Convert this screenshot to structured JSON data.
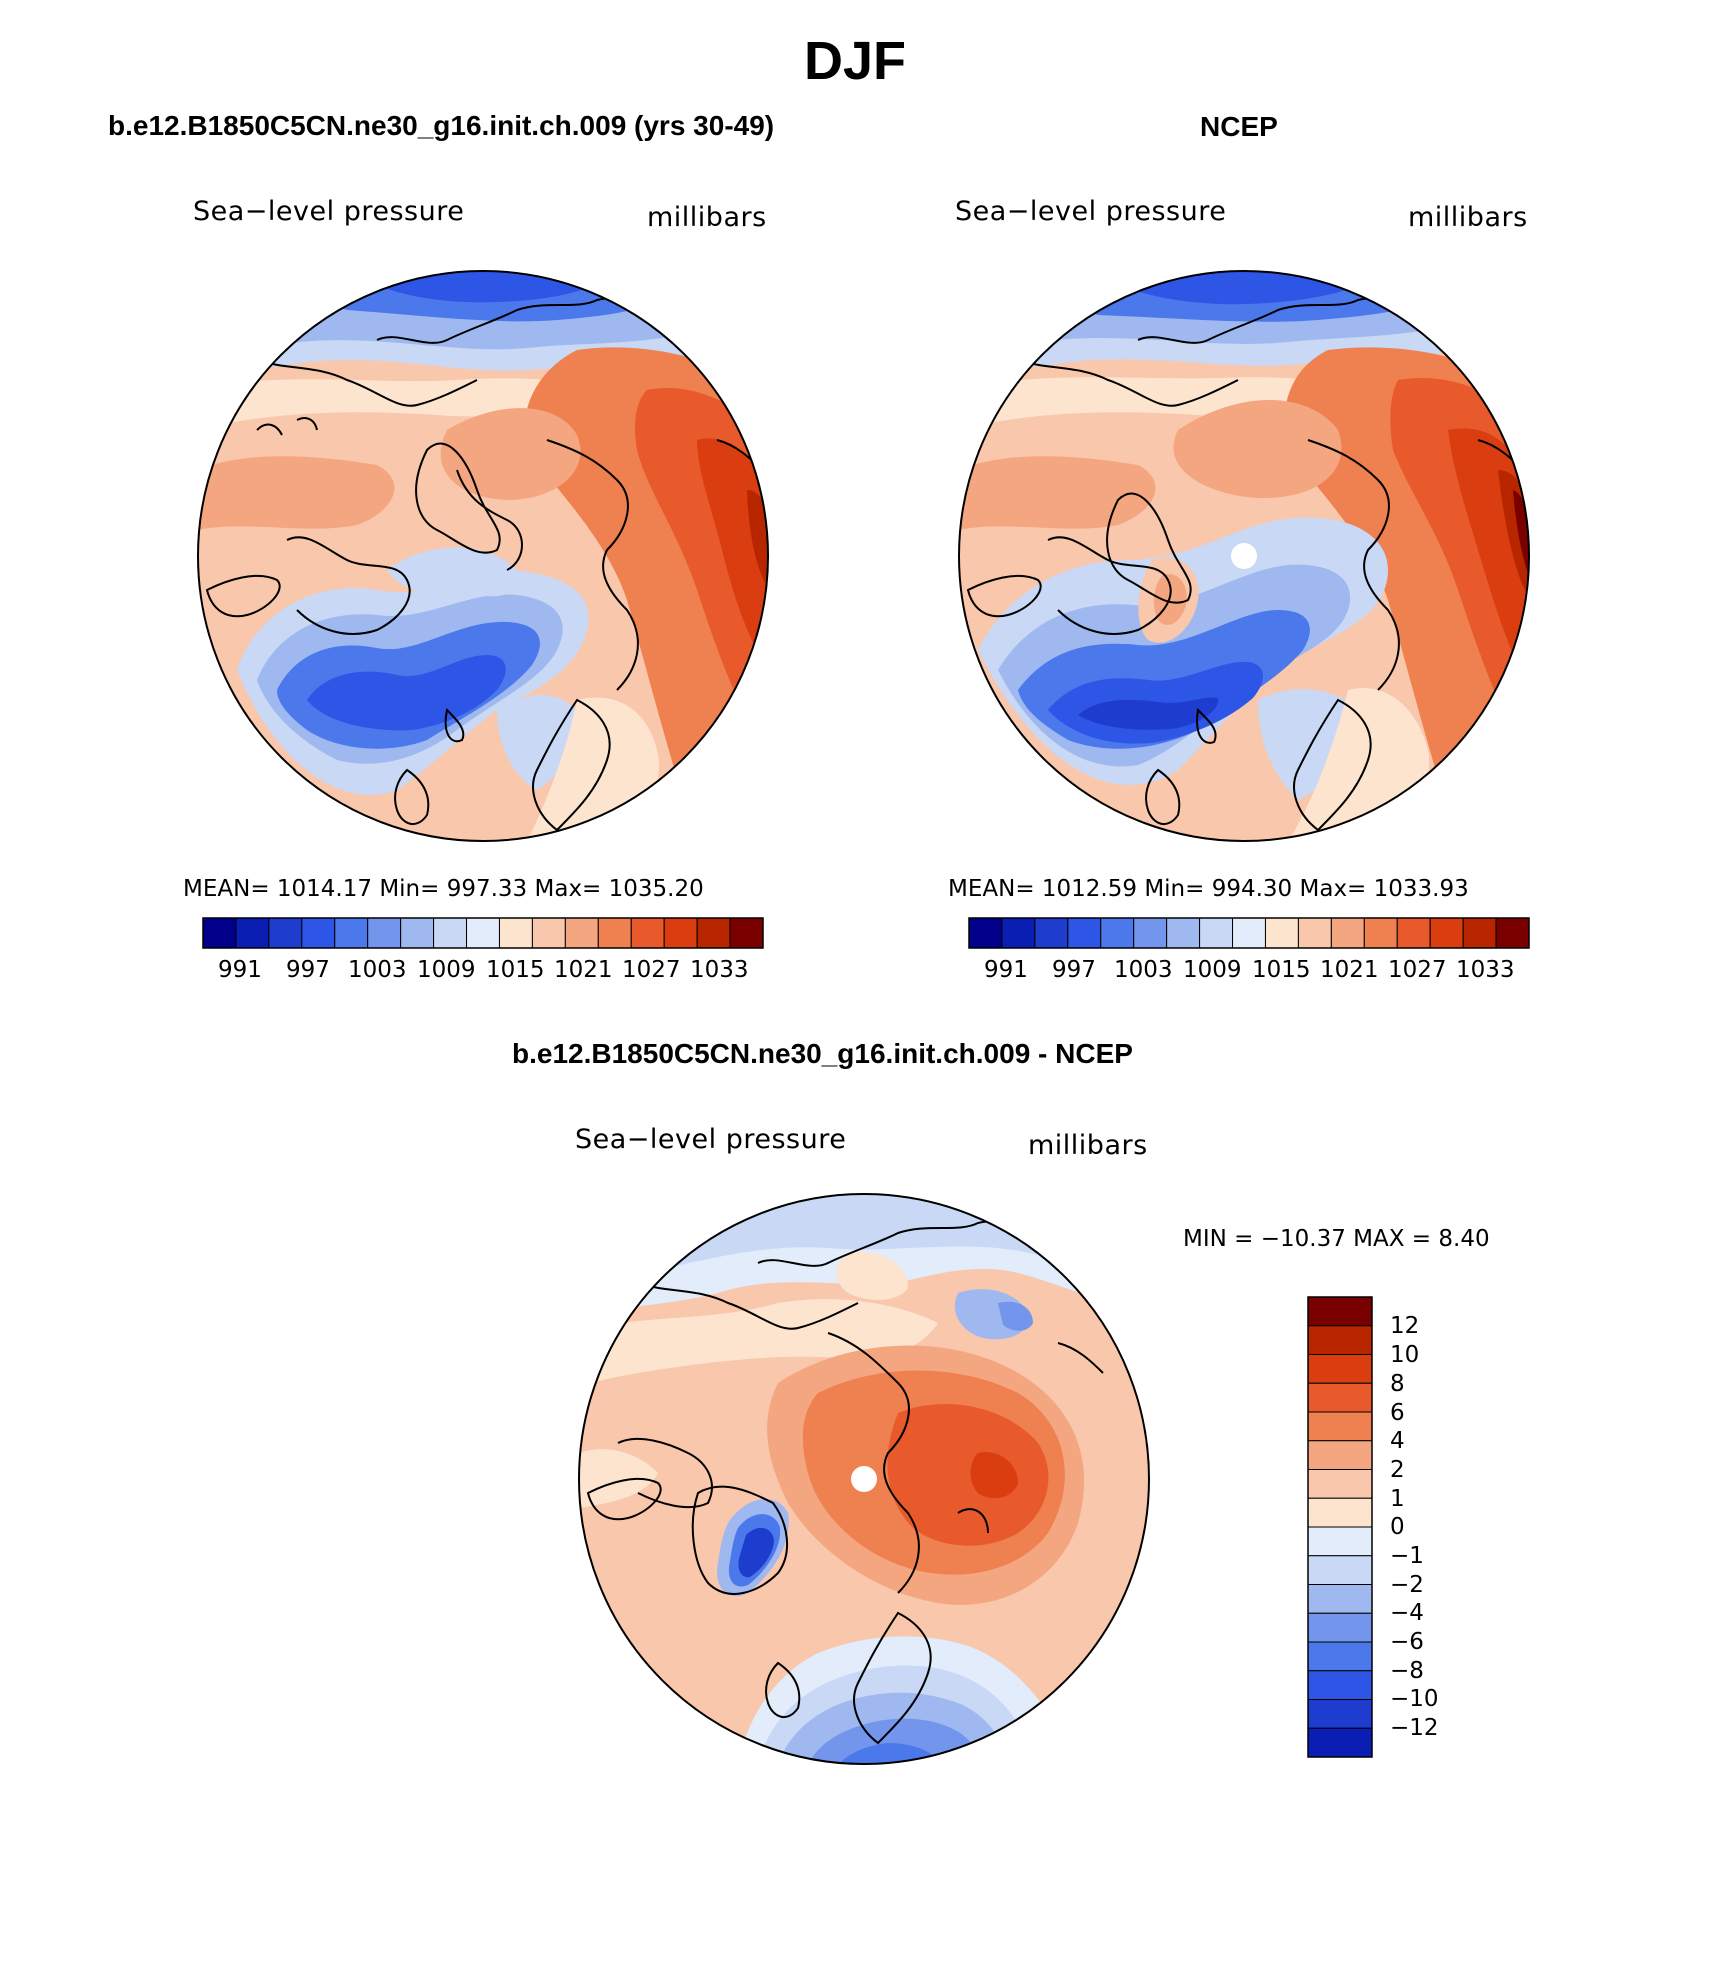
{
  "title": "DJF",
  "panels": [
    {
      "title": "b.e12.B1850C5CN.ne30_g16.init.ch.009 (yrs 30-49)",
      "left_label": "Sea−level pressure",
      "right_label": "millibars",
      "stats": "MEAN=  1014.17    Min=  997.33    Max=  1035.20",
      "colorbar_ticks": [
        "991",
        "997",
        "1003",
        "1009",
        "1015",
        "1021",
        "1027",
        "1033"
      ]
    },
    {
      "title": "NCEP",
      "left_label": "Sea−level pressure",
      "right_label": "millibars",
      "stats": "MEAN=  1012.59    Min=  994.30    Max=  1033.93",
      "colorbar_ticks": [
        "991",
        "997",
        "1003",
        "1009",
        "1015",
        "1021",
        "1027",
        "1033"
      ]
    }
  ],
  "diff_panel": {
    "title": "b.e12.B1850C5CN.ne30_g16.init.ch.009 - NCEP",
    "left_label": "Sea−level pressure",
    "right_label": "millibars",
    "stats": "MIN  =  −10.37  MAX  =     8.40",
    "colorbar_ticks": [
      "12",
      "10",
      "8",
      "6",
      "4",
      "2",
      "1",
      "0",
      "−1",
      "−2",
      "−4",
      "−6",
      "−8",
      "−10",
      "−12"
    ]
  },
  "colors": {
    "abs_scale": [
      "#00008b",
      "#0a1eb4",
      "#1e3ccd",
      "#2d55e6",
      "#4b78eb",
      "#7396ec",
      "#9fb9f0",
      "#c8d8f5",
      "#e2ecfa",
      "#fde4cf",
      "#f9c7ab",
      "#f4a680",
      "#ef8050",
      "#e85a2b",
      "#d93d10",
      "#b82600",
      "#7a0000"
    ],
    "diff_scale": [
      "#7a0000",
      "#b82600",
      "#d93d10",
      "#e85a2b",
      "#ef8050",
      "#f4a680",
      "#f9c7ab",
      "#fde4cf",
      "#e2ecfa",
      "#c8d8f5",
      "#9fb9f0",
      "#7396ec",
      "#4b78eb",
      "#2d55e6",
      "#1e3ccd",
      "#0a1eb4"
    ]
  }
}
